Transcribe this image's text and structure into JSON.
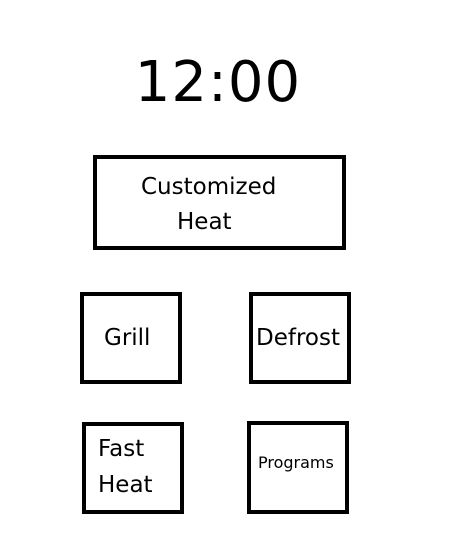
{
  "clock": {
    "time": "12:00"
  },
  "buttons": {
    "customized_heat": {
      "line1": "Customized",
      "line2": "Heat"
    },
    "grill": {
      "label": "Grill"
    },
    "defrost": {
      "label": "Defrost"
    },
    "fast_heat": {
      "line1": "Fast",
      "line2": "Heat"
    },
    "programs": {
      "label": "Programs"
    }
  }
}
